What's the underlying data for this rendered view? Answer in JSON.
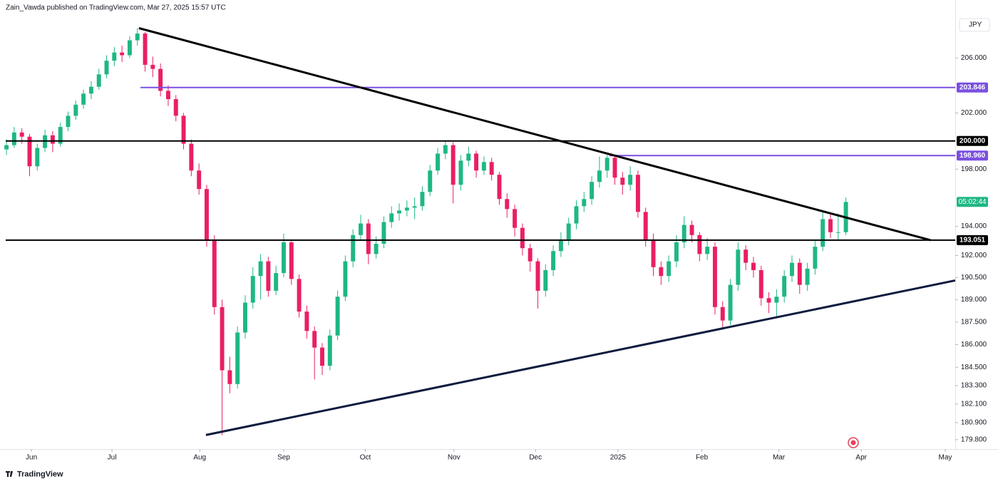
{
  "header": {
    "title": "Zain_Vawda published on TradingView.com, Mar 27, 2025 15:57 UTC",
    "logo": "TradingView"
  },
  "chart_data": {
    "type": "candlestick",
    "currency": "JPY",
    "log": true,
    "up_color": "#1fb784",
    "down_color": "#ea1f62",
    "ylim": [
      179.2,
      210.3
    ],
    "xlim": [
      -0.1,
      123.2
    ],
    "yticks": [
      {
        "value": 206,
        "label": "206.000"
      },
      {
        "value": 202,
        "label": "202.000"
      },
      {
        "value": 198,
        "label": "198.000"
      },
      {
        "value": 194,
        "label": "194.000"
      },
      {
        "value": 192,
        "label": "192.000"
      },
      {
        "value": 190.5,
        "label": "190.500"
      },
      {
        "value": 189,
        "label": "189.000"
      },
      {
        "value": 187.5,
        "label": "187.500"
      },
      {
        "value": 186,
        "label": "186.000"
      },
      {
        "value": 184.5,
        "label": "184.500"
      },
      {
        "value": 183.3,
        "label": "183.300"
      },
      {
        "value": 182.1,
        "label": "182.100"
      },
      {
        "value": 180.9,
        "label": "180.900"
      },
      {
        "value": 179.8,
        "label": "179.800"
      }
    ],
    "xticks": [
      {
        "value": 3.24,
        "label": "Jun"
      },
      {
        "value": 13.7,
        "label": "Jul"
      },
      {
        "value": 25.1,
        "label": "Aug"
      },
      {
        "value": 36,
        "label": "Sep"
      },
      {
        "value": 46.6,
        "label": "Oct"
      },
      {
        "value": 58.1,
        "label": "Nov"
      },
      {
        "value": 68.7,
        "label": "Dec"
      },
      {
        "value": 79.4,
        "label": "2025"
      },
      {
        "value": 90.3,
        "label": "Feb"
      },
      {
        "value": 100.3,
        "label": "Mar"
      },
      {
        "value": 111,
        "label": "Apr"
      },
      {
        "value": 121.9,
        "label": "May"
      }
    ],
    "levels": [
      {
        "value": 203.846,
        "label": "203.846",
        "color": "#7b4fe0",
        "start": 17.4
      },
      {
        "value": 200,
        "label": "200.000",
        "color": "#000000",
        "start": -0.1
      },
      {
        "value": 198.96,
        "label": "198.960",
        "color": "#7b4fe0",
        "start": 78.3
      },
      {
        "value": 193.051,
        "label": "193.051",
        "color": "#000000",
        "start": -0.1
      }
    ],
    "trendlines": [
      {
        "x": [
          17.2,
          120
        ],
        "y": [
          208.2,
          193.051
        ],
        "color": "#000000"
      },
      {
        "x": [
          25.9,
          123.2
        ],
        "y": [
          180.1,
          190.3
        ],
        "color": "#0d1b3e"
      }
    ],
    "countdown": "05:02:44",
    "ohlc": [
      [
        199.4,
        200.1,
        199.0,
        199.7
      ],
      [
        199.7,
        201.0,
        199.5,
        200.6
      ],
      [
        200.6,
        200.9,
        199.8,
        200.3
      ],
      [
        200.3,
        200.5,
        197.5,
        198.2
      ],
      [
        198.2,
        199.8,
        197.9,
        199.5
      ],
      [
        199.5,
        200.8,
        199.2,
        200.4
      ],
      [
        200.4,
        200.7,
        199.2,
        199.8
      ],
      [
        199.8,
        201.3,
        199.6,
        201.0
      ],
      [
        201.0,
        202.1,
        200.7,
        201.8
      ],
      [
        201.8,
        202.9,
        201.5,
        202.6
      ],
      [
        202.6,
        203.7,
        202.3,
        203.4
      ],
      [
        203.4,
        204.3,
        203.0,
        203.9
      ],
      [
        203.9,
        205.2,
        203.7,
        204.8
      ],
      [
        204.8,
        206.2,
        204.5,
        205.8
      ],
      [
        205.8,
        206.8,
        205.4,
        206.4
      ],
      [
        206.4,
        206.9,
        205.7,
        206.2
      ],
      [
        206.2,
        207.6,
        206.0,
        207.3
      ],
      [
        207.3,
        208.2,
        206.9,
        207.8
      ],
      [
        207.8,
        207.9,
        205.0,
        205.5
      ],
      [
        205.5,
        206.1,
        204.6,
        205.2
      ],
      [
        205.2,
        205.6,
        203.2,
        203.6
      ],
      [
        203.6,
        204.0,
        202.5,
        203.0
      ],
      [
        203.0,
        203.3,
        201.4,
        201.8
      ],
      [
        201.8,
        202.0,
        199.4,
        199.8
      ],
      [
        199.8,
        200.1,
        197.5,
        197.9
      ],
      [
        197.9,
        198.4,
        196.2,
        196.6
      ],
      [
        196.6,
        196.9,
        192.6,
        193.0
      ],
      [
        193.0,
        193.4,
        188.0,
        188.5
      ],
      [
        188.5,
        189.0,
        180.1,
        184.3
      ],
      [
        184.3,
        185.2,
        182.8,
        183.4
      ],
      [
        183.4,
        187.2,
        183.1,
        186.8
      ],
      [
        186.8,
        189.3,
        186.4,
        188.8
      ],
      [
        188.8,
        191.2,
        188.4,
        190.6
      ],
      [
        190.6,
        192.1,
        189.0,
        191.6
      ],
      [
        191.6,
        191.9,
        189.2,
        189.6
      ],
      [
        189.6,
        191.3,
        189.3,
        190.8
      ],
      [
        190.8,
        193.5,
        190.5,
        192.9
      ],
      [
        192.9,
        193.1,
        190.0,
        190.4
      ],
      [
        190.4,
        190.7,
        187.8,
        188.2
      ],
      [
        188.2,
        188.6,
        186.4,
        186.9
      ],
      [
        186.9,
        187.2,
        183.7,
        185.8
      ],
      [
        185.8,
        186.1,
        184.0,
        184.6
      ],
      [
        184.6,
        187.0,
        184.3,
        186.6
      ],
      [
        186.6,
        189.6,
        186.3,
        189.2
      ],
      [
        189.2,
        192.0,
        188.9,
        191.6
      ],
      [
        191.6,
        193.8,
        191.2,
        193.4
      ],
      [
        193.4,
        194.8,
        193.0,
        194.2
      ],
      [
        194.2,
        194.5,
        191.4,
        192.1
      ],
      [
        192.1,
        193.3,
        191.8,
        192.8
      ],
      [
        192.8,
        194.7,
        192.5,
        194.3
      ],
      [
        194.3,
        195.4,
        193.9,
        194.9
      ],
      [
        194.9,
        195.6,
        194.4,
        195.1
      ],
      [
        195.1,
        195.8,
        194.7,
        195.3
      ],
      [
        195.3,
        196.0,
        194.5,
        195.4
      ],
      [
        195.4,
        196.8,
        195.1,
        196.4
      ],
      [
        196.4,
        198.3,
        196.1,
        197.9
      ],
      [
        197.9,
        199.5,
        197.6,
        199.1
      ],
      [
        199.1,
        200.0,
        198.7,
        199.7
      ],
      [
        199.7,
        199.9,
        195.6,
        196.9
      ],
      [
        196.9,
        199.0,
        196.5,
        198.6
      ],
      [
        198.6,
        199.6,
        198.2,
        199.1
      ],
      [
        199.1,
        199.3,
        197.4,
        197.9
      ],
      [
        197.9,
        198.9,
        197.6,
        198.5
      ],
      [
        198.5,
        198.8,
        197.2,
        197.6
      ],
      [
        197.6,
        197.8,
        195.5,
        195.9
      ],
      [
        195.9,
        196.3,
        194.6,
        195.2
      ],
      [
        195.2,
        195.5,
        193.3,
        193.9
      ],
      [
        193.9,
        194.2,
        192.0,
        192.5
      ],
      [
        192.5,
        192.8,
        190.9,
        191.6
      ],
      [
        191.6,
        191.8,
        188.4,
        189.6
      ],
      [
        189.6,
        191.4,
        189.2,
        191.0
      ],
      [
        191.0,
        192.7,
        190.6,
        192.3
      ],
      [
        192.3,
        193.6,
        191.9,
        193.1
      ],
      [
        193.1,
        194.6,
        192.7,
        194.2
      ],
      [
        194.2,
        195.8,
        193.8,
        195.4
      ],
      [
        195.4,
        196.4,
        195.0,
        195.9
      ],
      [
        195.9,
        197.5,
        195.5,
        197.1
      ],
      [
        197.1,
        198.9,
        196.7,
        197.9
      ],
      [
        197.9,
        199.0,
        197.4,
        198.8
      ],
      [
        198.8,
        198.9,
        196.9,
        197.4
      ],
      [
        197.4,
        197.8,
        196.2,
        196.9
      ],
      [
        196.9,
        198.2,
        196.5,
        197.6
      ],
      [
        197.6,
        197.9,
        194.6,
        195.0
      ],
      [
        195.0,
        195.3,
        192.6,
        193.1
      ],
      [
        193.1,
        193.5,
        190.6,
        191.2
      ],
      [
        191.2,
        191.6,
        190.0,
        190.6
      ],
      [
        190.6,
        192.0,
        190.2,
        191.6
      ],
      [
        191.6,
        193.4,
        191.2,
        192.9
      ],
      [
        192.9,
        194.7,
        192.5,
        194.1
      ],
      [
        194.1,
        194.4,
        192.9,
        193.4
      ],
      [
        193.4,
        193.6,
        191.6,
        192.1
      ],
      [
        192.1,
        193.2,
        191.7,
        192.6
      ],
      [
        192.6,
        192.9,
        188.0,
        188.5
      ],
      [
        188.5,
        188.9,
        187.0,
        187.6
      ],
      [
        187.6,
        190.4,
        187.3,
        190.0
      ],
      [
        190.0,
        192.9,
        189.6,
        192.4
      ],
      [
        192.4,
        192.7,
        191.0,
        191.5
      ],
      [
        191.5,
        191.9,
        190.5,
        191.0
      ],
      [
        191.0,
        191.3,
        188.6,
        189.1
      ],
      [
        189.1,
        189.5,
        188.1,
        188.8
      ],
      [
        188.8,
        189.7,
        187.8,
        189.2
      ],
      [
        189.2,
        191.0,
        188.8,
        190.6
      ],
      [
        190.6,
        192.0,
        190.2,
        191.5
      ],
      [
        191.5,
        191.8,
        189.4,
        190.0
      ],
      [
        190.0,
        191.5,
        189.6,
        191.1
      ],
      [
        191.1,
        193.0,
        190.7,
        192.6
      ],
      [
        192.6,
        195.0,
        192.3,
        194.5
      ],
      [
        194.5,
        194.9,
        193.2,
        193.6
      ],
      [
        193.6,
        194.9,
        193.1,
        193.6
      ],
      [
        193.6,
        196.0,
        193.4,
        195.7
      ]
    ]
  }
}
